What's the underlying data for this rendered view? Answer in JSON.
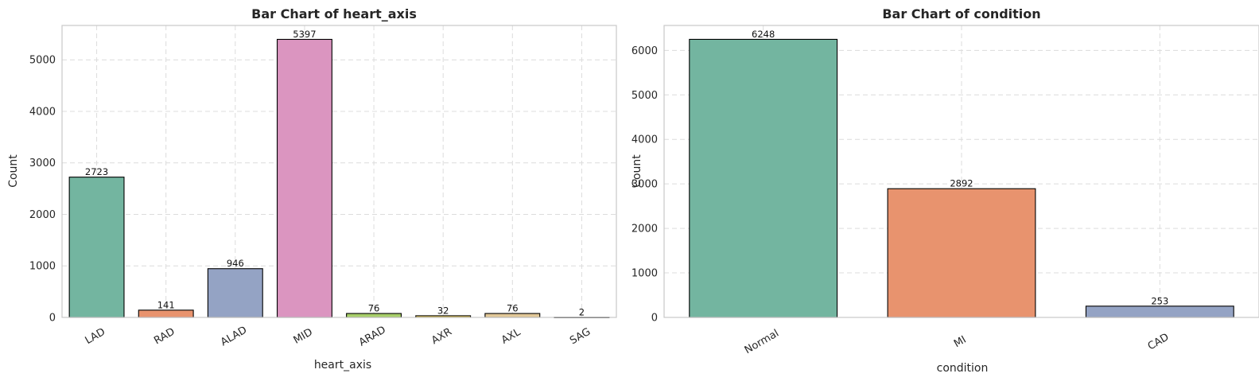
{
  "chart_data": [
    {
      "type": "bar",
      "title": "Bar Chart of heart_axis",
      "xlabel": "heart_axis",
      "ylabel": "Count",
      "categories": [
        "LAD",
        "RAD",
        "ALAD",
        "MID",
        "ARAD",
        "AXR",
        "AXL",
        "SAG"
      ],
      "values": [
        2723,
        141,
        946,
        5397,
        76,
        32,
        76,
        2
      ],
      "colors": [
        "#73b5a0",
        "#e8936e",
        "#94a3c4",
        "#db95c0",
        "#a8cf6a",
        "#f0d45a",
        "#e2c898",
        "#b3b3b3"
      ],
      "ylim": [
        0,
        5667
      ],
      "yticks": [
        0,
        1000,
        2000,
        3000,
        4000,
        5000
      ],
      "grid": true,
      "xtick_rotation": -30
    },
    {
      "type": "bar",
      "title": "Bar Chart of condition",
      "xlabel": "condition",
      "ylabel": "Count",
      "categories": [
        "Normal",
        "MI",
        "CAD"
      ],
      "values": [
        6248,
        2892,
        253
      ],
      "colors": [
        "#73b5a0",
        "#e8936e",
        "#94a3c4"
      ],
      "ylim": [
        0,
        6560
      ],
      "yticks": [
        0,
        1000,
        2000,
        3000,
        4000,
        5000,
        6000
      ],
      "grid": true,
      "xtick_rotation": -30
    }
  ]
}
